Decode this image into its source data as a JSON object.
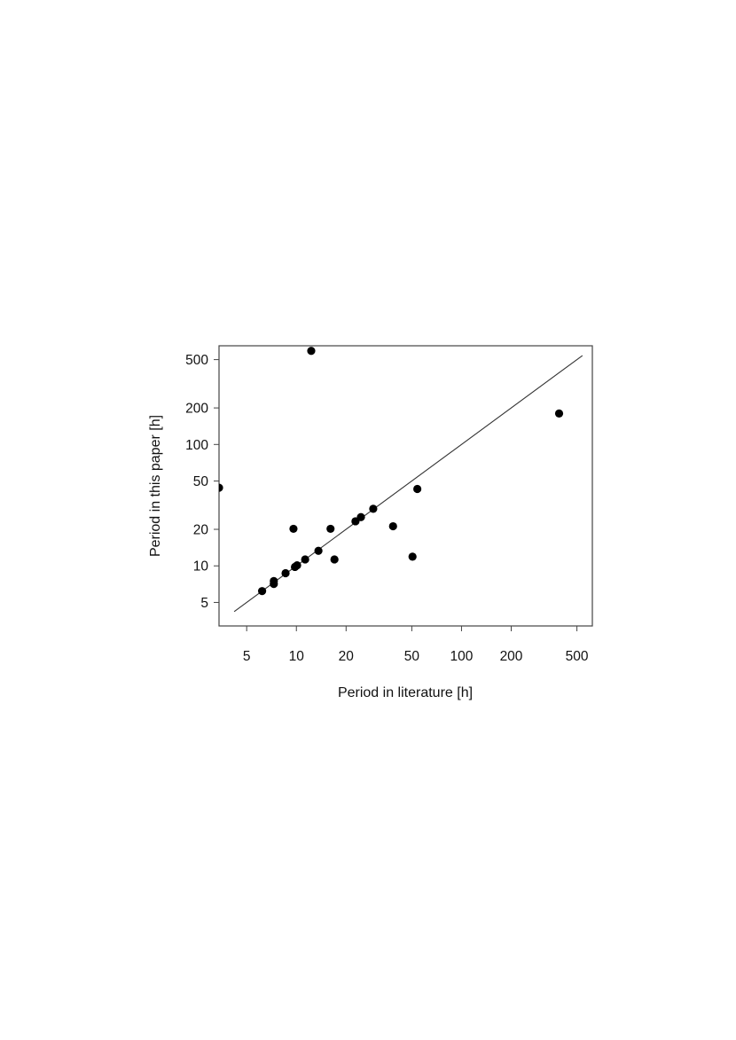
{
  "chart_data": {
    "type": "scatter",
    "xlabel": "Period in literature [h]",
    "ylabel": "Period in this paper [h]",
    "x_scale": "log",
    "y_scale": "log",
    "xlim": [
      3.4,
      620
    ],
    "ylim": [
      3.2,
      650
    ],
    "x_ticks": [
      5,
      10,
      20,
      50,
      100,
      200,
      500
    ],
    "y_ticks": [
      5,
      10,
      20,
      50,
      100,
      200,
      500
    ],
    "x_tick_labels": [
      "5",
      "10",
      "20",
      "50",
      "100",
      "200",
      "500"
    ],
    "y_tick_labels": [
      "5",
      "10",
      "20",
      "50",
      "100",
      "200",
      "500"
    ],
    "reference_line": {
      "label": "",
      "x": [
        4.2,
        540
      ],
      "y": [
        4.2,
        540
      ]
    },
    "points": [
      {
        "x": 6.2,
        "y": 6.2
      },
      {
        "x": 7.3,
        "y": 7.1
      },
      {
        "x": 7.3,
        "y": 7.5
      },
      {
        "x": 8.6,
        "y": 8.7
      },
      {
        "x": 9.8,
        "y": 9.8
      },
      {
        "x": 10.1,
        "y": 10.1
      },
      {
        "x": 11.3,
        "y": 11.3
      },
      {
        "x": 13.6,
        "y": 13.3
      },
      {
        "x": 9.6,
        "y": 20.2
      },
      {
        "x": 16.1,
        "y": 20.2
      },
      {
        "x": 17.0,
        "y": 11.3
      },
      {
        "x": 12.3,
        "y": 590
      },
      {
        "x": 22.8,
        "y": 23.3
      },
      {
        "x": 24.6,
        "y": 25.2
      },
      {
        "x": 29.2,
        "y": 29.5
      },
      {
        "x": 38.5,
        "y": 21.2
      },
      {
        "x": 50.5,
        "y": 11.9
      },
      {
        "x": 54.0,
        "y": 43.0
      },
      {
        "x": 390,
        "y": 180
      },
      {
        "x": 3.4,
        "y": 44.0
      }
    ],
    "grid": false,
    "legend": "none",
    "colors": {
      "points": "#000000",
      "line": "#333333",
      "frame": "#444444"
    }
  }
}
